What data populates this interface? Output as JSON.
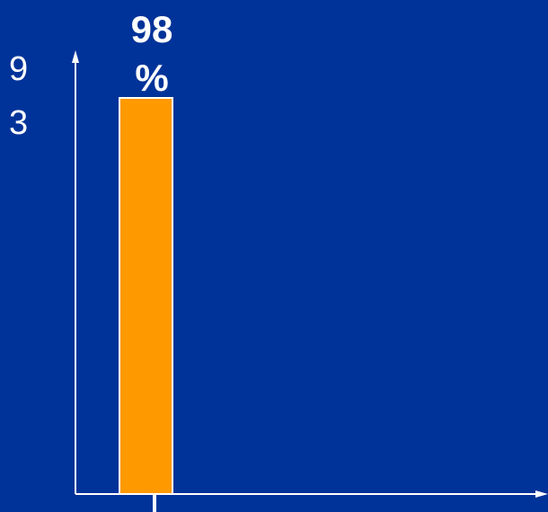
{
  "colors": {
    "background": "#003399",
    "bar_fill": "#ff9900",
    "bar_stroke": "#ffffff",
    "axis": "#ffffff",
    "text": "#ffffff"
  },
  "chart_data": {
    "type": "bar",
    "categories": [
      ""
    ],
    "values": [
      98
    ],
    "data_labels": [
      "98",
      "%"
    ],
    "ylabel_chars": [
      "9",
      "3"
    ],
    "xlabel": "",
    "ylim": [
      0,
      100
    ],
    "grid": false,
    "legend": "none"
  }
}
